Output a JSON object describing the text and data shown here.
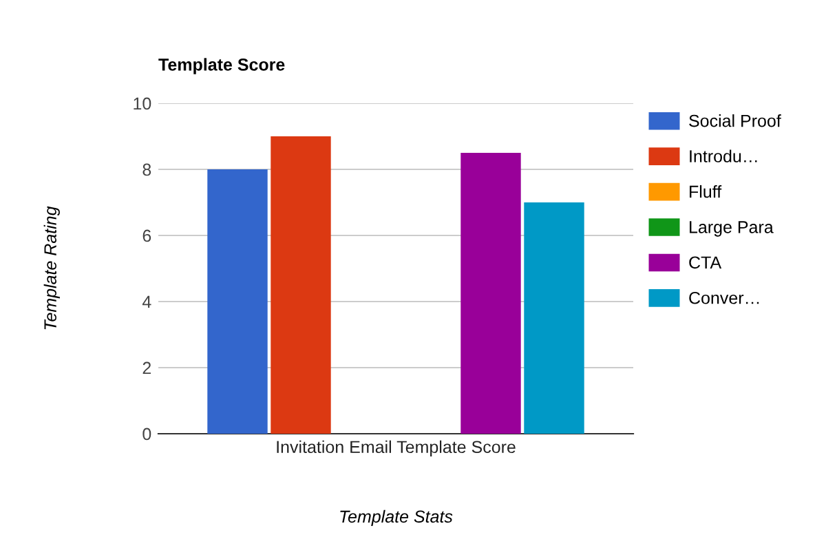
{
  "chart_data": {
    "type": "bar",
    "title": "Template Score",
    "xlabel": "Template Stats",
    "ylabel": "Template Rating",
    "categories": [
      "Invitation Email Template Score"
    ],
    "series": [
      {
        "name": "Social Proof",
        "color": "#3366cc",
        "values": [
          8
        ]
      },
      {
        "name": "Introdu…",
        "color": "#dc3912",
        "values": [
          9
        ]
      },
      {
        "name": "Fluff",
        "color": "#ff9900",
        "values": [
          0
        ]
      },
      {
        "name": "Large Para",
        "color": "#109618",
        "values": [
          0
        ]
      },
      {
        "name": "CTA",
        "color": "#990099",
        "values": [
          8.5
        ]
      },
      {
        "name": "Conver…",
        "color": "#0099c6",
        "values": [
          7
        ]
      }
    ],
    "ylim": [
      0,
      10
    ],
    "yticks": [
      0,
      2,
      4,
      6,
      8,
      10
    ],
    "grid": "y",
    "legend": "right"
  }
}
